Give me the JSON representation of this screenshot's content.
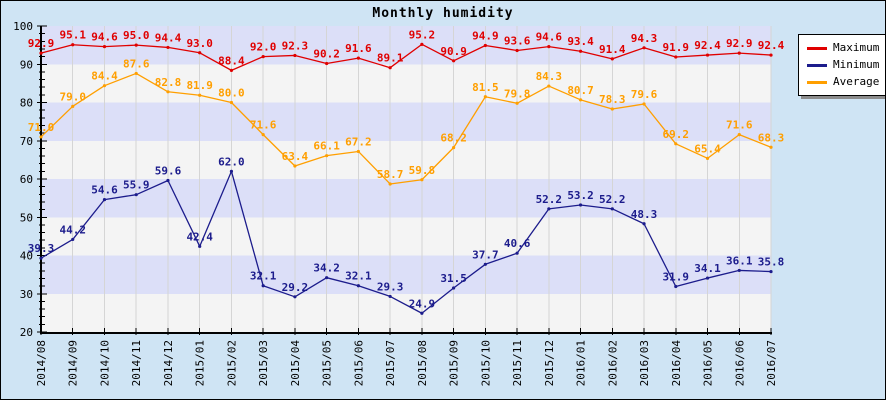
{
  "title": "Monthly humidity",
  "colors": {
    "background": "#cfe4f4",
    "band_a": "#dcdff8",
    "band_b": "#f4f4f4",
    "grid": "#d5d5d5",
    "axis": "#000000",
    "tick_text": "#000000",
    "legend_bg": "#ffffff",
    "legend_border": "#000000",
    "legend_shadow": "#8c8c8c",
    "maximum": "#e00000",
    "minimum": "#1c1c8c",
    "average": "#ff9f00"
  },
  "chart_data": {
    "type": "line",
    "title": "Monthly humidity",
    "xlabel": "",
    "ylabel": "",
    "grid": true,
    "legend_position": "top-right",
    "ylim": [
      20,
      100
    ],
    "y_ticks": [
      20,
      30,
      40,
      50,
      60,
      70,
      80,
      90,
      100
    ],
    "y_minor_step": 2,
    "x_label_rotation": -90,
    "band_fill_ranges": "alternating 10-unit horizontal bands, lavender from 90-100 downward",
    "categories": [
      "2014/08",
      "2014/09",
      "2014/10",
      "2014/11",
      "2014/12",
      "2015/01",
      "2015/02",
      "2015/03",
      "2015/04",
      "2015/05",
      "2015/06",
      "2015/07",
      "2015/08",
      "2015/09",
      "2015/10",
      "2015/11",
      "2015/12",
      "2016/01",
      "2016/02",
      "2016/03",
      "2016/04",
      "2016/05",
      "2016/06",
      "2016/07"
    ],
    "series": [
      {
        "name": "Maximum",
        "color": "#e00000",
        "values": [
          92.9,
          95.1,
          94.6,
          95.0,
          94.4,
          93.0,
          88.4,
          92.0,
          92.3,
          90.2,
          91.6,
          89.1,
          95.2,
          90.9,
          94.9,
          93.6,
          94.6,
          93.4,
          91.4,
          94.3,
          91.9,
          92.4,
          92.9,
          92.4
        ]
      },
      {
        "name": "Minimum",
        "color": "#1c1c8c",
        "values": [
          39.3,
          44.2,
          54.6,
          55.9,
          59.6,
          42.4,
          62.0,
          32.1,
          29.2,
          34.2,
          32.1,
          29.3,
          24.9,
          31.5,
          37.7,
          40.6,
          52.2,
          53.2,
          52.2,
          48.3,
          31.9,
          34.1,
          36.1,
          35.8
        ]
      },
      {
        "name": "Average",
        "color": "#ff9f00",
        "values": [
          71.0,
          79.0,
          84.4,
          87.6,
          82.8,
          81.9,
          80.0,
          71.6,
          63.4,
          66.1,
          67.2,
          58.7,
          59.8,
          68.2,
          81.5,
          79.8,
          84.3,
          80.7,
          78.3,
          79.6,
          69.2,
          65.4,
          71.6,
          68.3
        ]
      }
    ]
  }
}
